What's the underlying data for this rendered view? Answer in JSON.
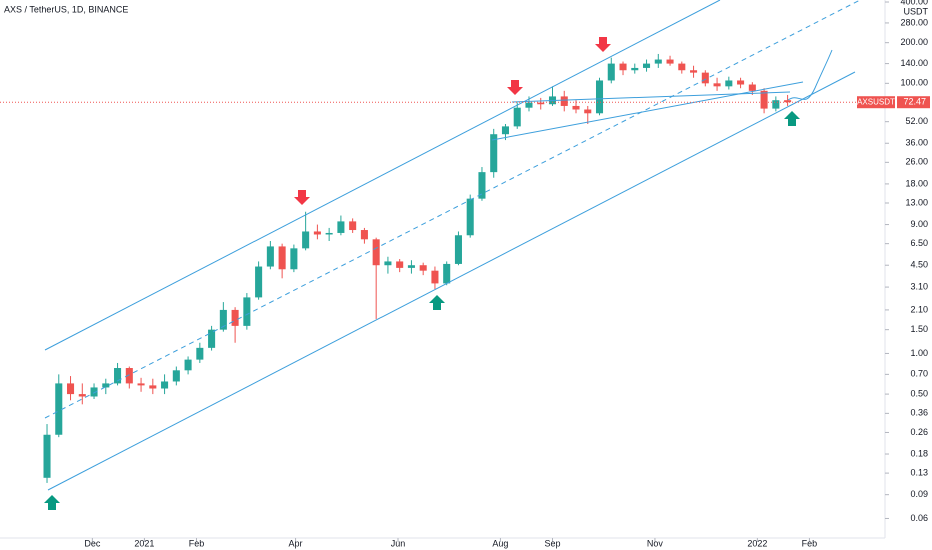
{
  "chart_data": {
    "type": "candlestick",
    "title": "AXS / TetherUS, 1D, BINANCE",
    "currency": "USDT",
    "symbol": "AXSUSDT",
    "log_scale": true,
    "up_color": "#26a69a",
    "down_color": "#ef5350",
    "x": [
      "2020-11-04",
      "2020-11-11",
      "2020-11-18",
      "2020-11-25",
      "2020-12-02",
      "2020-12-09",
      "2020-12-16",
      "2020-12-23",
      "2020-12-30",
      "2021-01-06",
      "2021-01-13",
      "2021-01-20",
      "2021-01-27",
      "2021-02-03",
      "2021-02-10",
      "2021-02-17",
      "2021-02-24",
      "2021-03-03",
      "2021-03-10",
      "2021-03-17",
      "2021-03-24",
      "2021-03-31",
      "2021-04-07",
      "2021-04-14",
      "2021-04-21",
      "2021-04-28",
      "2021-05-05",
      "2021-05-12",
      "2021-05-19",
      "2021-05-26",
      "2021-06-02",
      "2021-06-09",
      "2021-06-16",
      "2021-06-23",
      "2021-06-30",
      "2021-07-07",
      "2021-07-14",
      "2021-07-21",
      "2021-07-28",
      "2021-08-04",
      "2021-08-11",
      "2021-08-18",
      "2021-08-25",
      "2021-09-01",
      "2021-09-08",
      "2021-09-15",
      "2021-09-22",
      "2021-09-29",
      "2021-10-06",
      "2021-10-13",
      "2021-10-20",
      "2021-10-27",
      "2021-11-03",
      "2021-11-10",
      "2021-11-17",
      "2021-11-24",
      "2021-12-01",
      "2021-12-08",
      "2021-12-15",
      "2021-12-22",
      "2021-12-29",
      "2022-01-05",
      "2022-01-12",
      "2022-01-19"
    ],
    "open": [
      0.12,
      0.25,
      0.6,
      0.5,
      0.48,
      0.56,
      0.6,
      0.78,
      0.6,
      0.58,
      0.55,
      0.62,
      0.75,
      0.9,
      1.1,
      1.5,
      2.1,
      1.6,
      2.6,
      4.4,
      6.2,
      4.2,
      6.0,
      8.0,
      7.6,
      7.8,
      9.5,
      8.2,
      7.0,
      4.5,
      4.8,
      4.3,
      4.5,
      4.1,
      3.3,
      4.6,
      7.5,
      14,
      22,
      42,
      48,
      66,
      72,
      70,
      80,
      68,
      64,
      60,
      105,
      140,
      125,
      130,
      140,
      150,
      140,
      125,
      120,
      100,
      95,
      105,
      98,
      88,
      65,
      75
    ],
    "high": [
      0.3,
      0.7,
      0.68,
      0.6,
      0.6,
      0.65,
      0.85,
      0.8,
      0.66,
      0.65,
      0.7,
      0.8,
      0.95,
      1.2,
      1.6,
      2.4,
      2.2,
      2.8,
      4.8,
      6.8,
      6.5,
      6.4,
      11.2,
      9.0,
      8.5,
      10.5,
      10.0,
      8.5,
      7.2,
      5.2,
      5.0,
      4.9,
      4.7,
      4.4,
      4.8,
      8.0,
      15,
      24,
      46,
      50,
      72,
      80,
      78,
      95,
      88,
      75,
      68,
      110,
      155,
      145,
      140,
      150,
      165,
      160,
      145,
      135,
      125,
      110,
      112,
      110,
      102,
      92,
      80,
      82
    ],
    "low": [
      0.11,
      0.24,
      0.45,
      0.42,
      0.46,
      0.5,
      0.58,
      0.55,
      0.52,
      0.5,
      0.5,
      0.58,
      0.7,
      0.85,
      1.05,
      1.45,
      1.2,
      1.5,
      2.5,
      4.2,
      3.6,
      4.0,
      5.8,
      7.0,
      6.8,
      7.5,
      7.8,
      6.5,
      1.8,
      3.9,
      4.0,
      3.9,
      3.8,
      3.0,
      3.2,
      4.5,
      7.2,
      13.5,
      20,
      38,
      46,
      62,
      64,
      68,
      62,
      60,
      50,
      58,
      100,
      115,
      118,
      122,
      130,
      135,
      118,
      110,
      95,
      88,
      90,
      92,
      82,
      60,
      62,
      68
    ],
    "close": [
      0.25,
      0.6,
      0.5,
      0.48,
      0.56,
      0.6,
      0.78,
      0.6,
      0.58,
      0.55,
      0.62,
      0.75,
      0.9,
      1.1,
      1.5,
      2.1,
      1.6,
      2.6,
      4.4,
      6.2,
      4.2,
      6.0,
      8.0,
      7.6,
      7.8,
      9.5,
      8.2,
      7.0,
      4.5,
      4.8,
      4.3,
      4.5,
      4.1,
      3.3,
      4.6,
      7.5,
      14,
      22,
      42,
      48,
      66,
      72,
      70,
      80,
      68,
      64,
      60,
      105,
      140,
      125,
      130,
      140,
      150,
      140,
      125,
      120,
      100,
      95,
      105,
      98,
      88,
      65,
      75,
      72.47
    ],
    "xlim": [
      "2020-10-07",
      "2022-03-18"
    ],
    "xticks": [
      {
        "value": "2020-12-01",
        "label": "Dec"
      },
      {
        "value": "2021-01-01",
        "label": "2021"
      },
      {
        "value": "2021-02-01",
        "label": "Feb"
      },
      {
        "value": "2021-04-01",
        "label": "Apr"
      },
      {
        "value": "2021-06-01",
        "label": "Jun"
      },
      {
        "value": "2021-08-01",
        "label": "Aug"
      },
      {
        "value": "2021-09-01",
        "label": "Sep"
      },
      {
        "value": "2021-11-01",
        "label": "Nov"
      },
      {
        "value": "2022-01-01",
        "label": "2022"
      },
      {
        "value": "2022-02-01",
        "label": "Feb"
      }
    ],
    "ylim": [
      0.043,
      414
    ],
    "yticks": [
      0.06,
      0.09,
      0.13,
      0.18,
      0.26,
      0.36,
      {
        "value": 0.5,
        "label": "0.50"
      },
      {
        "value": 0.7,
        "label": "0.70"
      },
      {
        "value": 1,
        "label": "1.00"
      },
      {
        "value": 1.5,
        "label": "1.50"
      },
      {
        "value": 2.1,
        "label": "2.10"
      },
      {
        "value": 3.1,
        "label": "3.10"
      },
      {
        "value": 4.5,
        "label": "4.50"
      },
      {
        "value": 6.5,
        "label": "6.50"
      },
      {
        "value": 9,
        "label": "9.00"
      },
      {
        "value": 13,
        "label": "13.00"
      },
      {
        "value": 18,
        "label": "18.00"
      },
      {
        "value": 26,
        "label": "26.00"
      },
      {
        "value": 36,
        "label": "36.00"
      },
      {
        "value": 52,
        "label": "52.00"
      },
      {
        "value": 100,
        "label": "100.00"
      },
      {
        "value": 140,
        "label": "140.00"
      },
      {
        "value": 200,
        "label": "200.00"
      },
      {
        "value": 280,
        "label": "280.00"
      },
      {
        "value": 400,
        "label": "400.00"
      }
    ]
  }
}
